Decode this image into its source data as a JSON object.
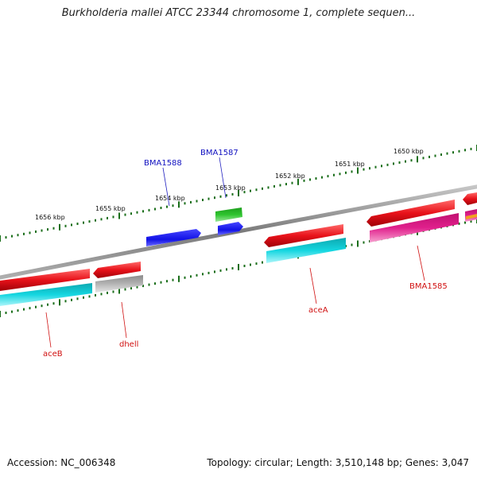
{
  "title": "Burkholderia mallei ATCC 23344 chromosome 1, complete sequen...",
  "footer": {
    "accession": "Accession: NC_006348",
    "summary": "Topology: circular; Length: 3,510,148 bp; Genes: 3,047"
  },
  "scale_labels": [
    "1656 kbp",
    "1655 kbp",
    "1654 kbp",
    "1653 kbp",
    "1652 kbp",
    "1651 kbp",
    "1650 kbp"
  ],
  "gene_labels": {
    "bma1588": "BMA1588",
    "bma1587": "BMA1587",
    "acea": "aceA",
    "aceb": "aceB",
    "dhell": "dhell",
    "bma1585": "BMA1585"
  },
  "colors": {
    "red": "#e8121a",
    "cyan": "#14d6e0",
    "blue": "#1212e6",
    "green": "#2ec42e",
    "gray": "#a8a8a8",
    "magenta": "#e0208c",
    "backbone": "#808080",
    "tick": "#1a6e1a",
    "label_blue": "#1010c0",
    "label_red": "#d01010"
  }
}
